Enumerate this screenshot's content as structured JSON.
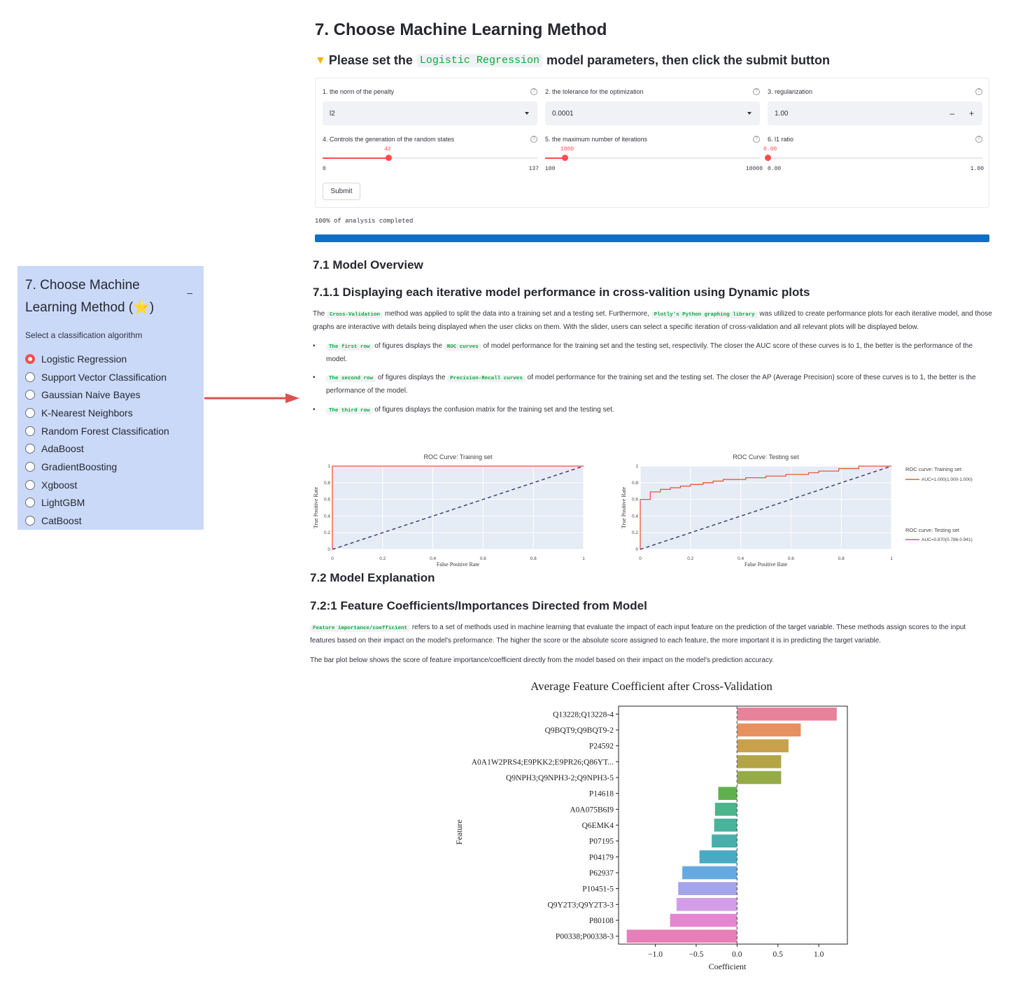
{
  "sidebar": {
    "title": "7. Choose Machine Learning Method (⭐)",
    "collapse_glyph": "–",
    "caption": "Select a classification algorithm",
    "options": [
      "Logistic Regression",
      "Support Vector Classification",
      "Gaussian Naive Bayes",
      "K-Nearest Neighbors",
      "Random Forest Classification",
      "AdaBoost",
      "GradientBoosting",
      "Xgboost",
      "LightGBM",
      "CatBoost"
    ],
    "selected": "Logistic Regression"
  },
  "main": {
    "title": "7. Choose Machine Learning Method",
    "prompt_pre": "Please set the",
    "prompt_code": "Logistic Regression",
    "prompt_post": "model parameters, then click the submit button",
    "prompt_icon": "point-down-icon"
  },
  "form": {
    "penalty": {
      "label": "1. the norm of the penalty",
      "value": "l2"
    },
    "tolerance": {
      "label": "2. the tolerance for the optimization",
      "value": "0.0001"
    },
    "regularization": {
      "label": "3. regularization",
      "value": "1.00",
      "minus": "–",
      "plus": "+"
    },
    "random_state": {
      "label": "4. Controls the generation of the random states",
      "value": 42,
      "value_text": "42",
      "min": 0,
      "min_text": "0",
      "max": 137,
      "max_text": "137"
    },
    "max_iter": {
      "label": "5. the maximum number of iterations",
      "value": 1000,
      "value_text": "1000",
      "min": 100,
      "min_text": "100",
      "max": 10000,
      "max_text": "10000"
    },
    "l1_ratio": {
      "label": "6. l1 ratio",
      "value": 0.0,
      "value_text": "0.00",
      "min": 0.0,
      "min_text": "0.00",
      "max": 1.0,
      "max_text": "1.00"
    },
    "submit": "Submit"
  },
  "progress": {
    "text": "100% of analysis completed",
    "value": 1.0
  },
  "sections": {
    "overview": "7.1 Model Overview",
    "dynamic": "7.1.1 Displaying each iterative model performance in cross-valition using Dynamic plots",
    "explanation": "7.2 Model Explanation",
    "coef": "7.2:1 Feature Coefficients/Importances Directed from Model"
  },
  "text": {
    "p1_a": "The",
    "p1_code1": "Cross-Validation",
    "p1_b": "method was applied to split the data into a training set and a testing set. Furthermore,",
    "p1_code2": "Plotly's Python graphing library",
    "p1_c": "was utilized to create performance plots for each iterative model, and those graphs are interactive with details being displayed when the user clicks on them. With the slider, users can select a specific iteration of cross-validation and all relevant plots will be displayed below.",
    "b1_code": "The first row",
    "b1_a": "of figures displays the",
    "b1_code2": "ROC curves",
    "b1_b": "of model performance for the training set and the testing set, respectivily. The closer the AUC score of these curves is to 1, the better is the performance of the model.",
    "b2_code": "The second row",
    "b2_a": "of figures displays the",
    "b2_code2": "Precision-Recall curves",
    "b2_b": "of model performance for the training set and the testing set. The closer the AP (Average Precision) score of these curves is to 1, the better is the performance of the model.",
    "b3_code": "The third row",
    "b3_a": "of figures displays the confusion matrix for the training set and the testing set.",
    "p2_code": "Feature importance/coefficient",
    "p2_a": "refers to a set of methods used in machine learning that evaluate the impact of each input feature on the prediction of the target variable. These methods assign scores to the input features based on their impact on the model's preformance. The higher the score or the absolute score assigned to each feature, the more important it is in predicting the target variable.",
    "p3": "The bar plot below shows the score of feature importance/coefficient directly from the model based on their impact on the model's prediction accuracy."
  },
  "chart_data": [
    {
      "type": "line",
      "title": "ROC Curve: Training set",
      "xlabel": "False Positive Rate",
      "ylabel": "True Positive Rate",
      "xlim": [
        0,
        1
      ],
      "ylim": [
        0,
        1
      ],
      "x_ticks": [
        "0",
        "0.2",
        "0.4",
        "0.6",
        "0.8",
        "1"
      ],
      "y_ticks": [
        "0",
        "0.2",
        "0.4",
        "0.6",
        "0.8",
        "1"
      ],
      "series": [
        {
          "name": "ROC curve: Training set",
          "color": "#ef553b",
          "x": [
            0,
            0,
            1
          ],
          "y": [
            0,
            1,
            1
          ]
        },
        {
          "color": "#3c4470",
          "dash": true,
          "x": [
            0,
            1
          ],
          "y": [
            0,
            1
          ]
        }
      ]
    },
    {
      "type": "line",
      "title": "ROC Curve: Testing set",
      "xlabel": "False Positive Rate",
      "ylabel": "True Positive Rate",
      "xlim": [
        0,
        1
      ],
      "ylim": [
        0,
        1
      ],
      "x_ticks": [
        "0",
        "0.2",
        "0.4",
        "0.6",
        "0.8",
        "1"
      ],
      "y_ticks": [
        "0",
        "0.2",
        "0.4",
        "0.6",
        "0.8",
        "1"
      ],
      "series": [
        {
          "name": "ROC curve: Testing set",
          "color": "#ef553b",
          "x": [
            0,
            0,
            0.04,
            0.04,
            0.08,
            0.08,
            0.12,
            0.12,
            0.16,
            0.16,
            0.2,
            0.2,
            0.25,
            0.25,
            0.29,
            0.29,
            0.33,
            0.33,
            0.42,
            0.42,
            0.5,
            0.5,
            0.58,
            0.58,
            0.67,
            0.67,
            0.71,
            0.71,
            0.79,
            0.79,
            0.87,
            0.87,
            1
          ],
          "y": [
            0,
            0.6,
            0.6,
            0.69,
            0.69,
            0.72,
            0.72,
            0.74,
            0.74,
            0.76,
            0.76,
            0.78,
            0.78,
            0.8,
            0.8,
            0.82,
            0.82,
            0.84,
            0.84,
            0.86,
            0.86,
            0.88,
            0.88,
            0.9,
            0.9,
            0.92,
            0.92,
            0.94,
            0.94,
            0.97,
            0.97,
            1,
            1
          ]
        },
        {
          "color": "#3c4470",
          "dash": true,
          "x": [
            0,
            1
          ],
          "y": [
            0,
            1
          ]
        }
      ]
    },
    {
      "type": "bar",
      "orientation": "horizontal",
      "title": "Average Feature Coefficient after Cross-Validation",
      "xlabel": "Coefficient",
      "ylabel": "Feature",
      "xlim": [
        -1.45,
        1.35
      ],
      "x_ticks": [
        -1.0,
        -0.5,
        0.0,
        0.5,
        1.0
      ],
      "x_tick_labels": [
        "−1.0",
        "−0.5",
        "0.0",
        "0.5",
        "1.0"
      ],
      "categories": [
        "Q13228;Q13228-4",
        "Q9BQT9;Q9BQT9-2",
        "P24592",
        "A0A1W2PRS4;E9PKK2;E9PR26;Q86YT...",
        "Q9NPH3;Q9NPH3-2;Q9NPH3-5",
        "P14618",
        "A0A075B6I9",
        "Q6EMK4",
        "P07195",
        "P04179",
        "P62937",
        "P10451-5",
        "Q9Y2T3;Q9Y2T3-3",
        "P80108",
        "P00338;P00338-3"
      ],
      "values": [
        1.22,
        0.78,
        0.63,
        0.54,
        0.54,
        -0.23,
        -0.27,
        -0.28,
        -0.31,
        -0.46,
        -0.67,
        -0.72,
        -0.74,
        -0.82,
        -1.35
      ],
      "colors": [
        "#e8829a",
        "#e6915f",
        "#c9a04b",
        "#b3a546",
        "#95ab48",
        "#5fb14d",
        "#4cb58b",
        "#4ab39b",
        "#4aaeaa",
        "#4aaac4",
        "#66a9e1",
        "#a3a4e9",
        "#d39de8",
        "#e586cf",
        "#e67fb7"
      ]
    }
  ],
  "legend": {
    "train_title": "ROC curve: Training set",
    "train_auc": "AUC=1.000(1.000-1.000)",
    "test_title": "ROC curve: Testing set",
    "test_auc": "AUC=0.870(0.786-0.941)"
  }
}
